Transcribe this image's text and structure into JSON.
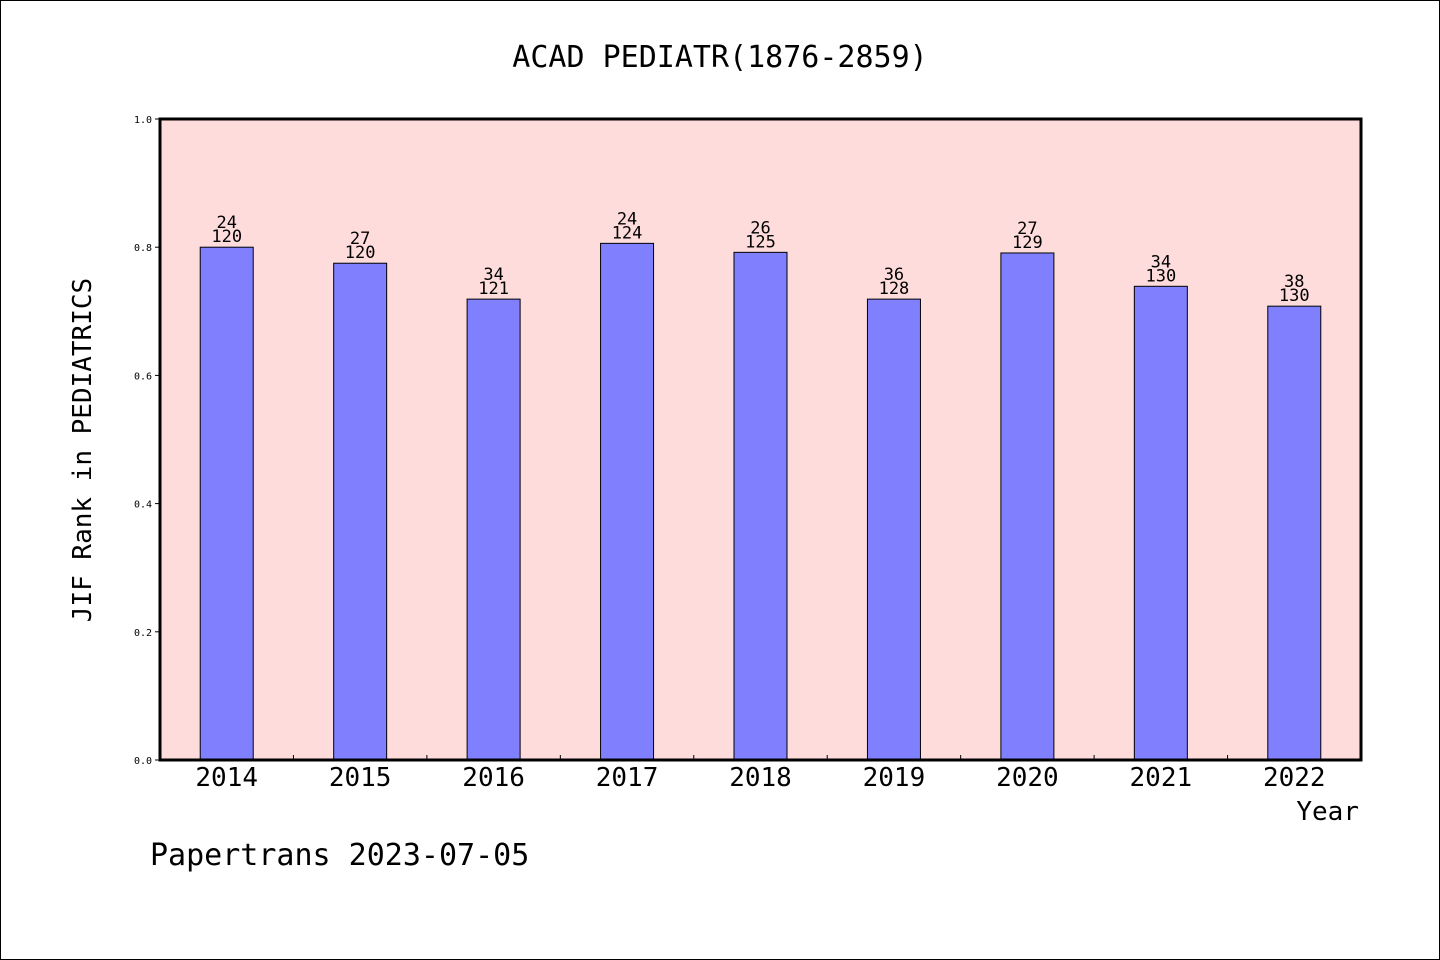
{
  "chart_data": {
    "type": "bar",
    "title": "ACAD PEDIATR(1876-2859)",
    "xlabel": "Year",
    "ylabel": "JIF Rank in PEDIATRICS",
    "ylim": [
      0,
      1
    ],
    "yticks": [
      0.0,
      0.2,
      0.4,
      0.6,
      0.8,
      1.0
    ],
    "ytick_labels": [
      "0.0",
      "0.2",
      "0.4",
      "0.6",
      "0.8",
      "1.0"
    ],
    "categories": [
      "2014",
      "2015",
      "2016",
      "2017",
      "2018",
      "2019",
      "2020",
      "2021",
      "2022"
    ],
    "values": [
      0.8,
      0.775,
      0.719,
      0.806,
      0.792,
      0.719,
      0.791,
      0.739,
      0.708
    ],
    "rank": [
      "24",
      "27",
      "34",
      "24",
      "26",
      "36",
      "27",
      "34",
      "38"
    ],
    "total": [
      "120",
      "120",
      "121",
      "124",
      "125",
      "128",
      "129",
      "130",
      "130"
    ],
    "grid": false,
    "colors": {
      "bar": "#8080ff",
      "plot_background": "#ffdcdc",
      "axis": "#000000"
    }
  },
  "footer": {
    "credit": "Papertrans 2023-07-05"
  }
}
